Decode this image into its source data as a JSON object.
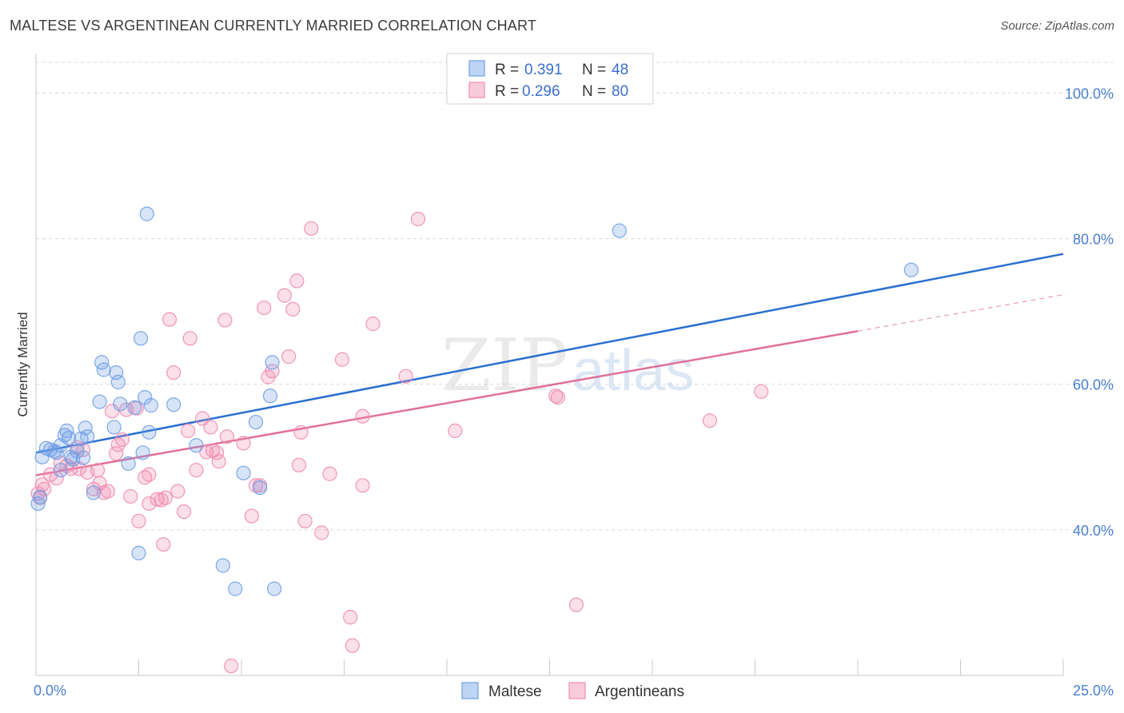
{
  "title": "MALTESE VS ARGENTINEAN CURRENTLY MARRIED CORRELATION CHART",
  "source": "Source: ZipAtlas.com",
  "watermark": {
    "zip": "ZIP",
    "atlas": "atlas"
  },
  "colors": {
    "maltese": "#6f9fe6",
    "maltese_line": "#2a6fd0",
    "argentinean": "#f08cb0",
    "argentinean_line": "#e0709a",
    "grid": "#d8d8d8",
    "axis_text": "#4a7fd0"
  },
  "legend": {
    "rows": [
      {
        "r_label": "R = ",
        "r_value": "0.391",
        "n_label": "N = ",
        "n_value": "48"
      },
      {
        "r_label": "R = ",
        "r_value": "0.296",
        "n_label": "N = ",
        "n_value": "80"
      }
    ]
  },
  "chart_data": {
    "type": "scatter",
    "title": "MALTESE VS ARGENTINEAN CURRENTLY MARRIED CORRELATION CHART",
    "xlabel": "",
    "ylabel": "Currently Married",
    "xlim": [
      0,
      25
    ],
    "ylim": [
      20,
      104
    ],
    "x_tick_labels": [
      "0.0%",
      "25.0%"
    ],
    "y_ticks": [
      40,
      60,
      80,
      100
    ],
    "y_tick_labels": [
      "40.0%",
      "60.0%",
      "80.0%",
      "100.0%"
    ],
    "legend_position": "top-center",
    "series": [
      {
        "name": "Maltese",
        "R": 0.391,
        "N": 48,
        "trend": {
          "x0": 0,
          "y0": 50.6,
          "x1": 25,
          "y1": 77.9
        },
        "points": [
          [
            0.05,
            43.6
          ],
          [
            0.1,
            44.5
          ],
          [
            0.15,
            50.0
          ],
          [
            0.25,
            51.2
          ],
          [
            0.35,
            51.0
          ],
          [
            0.45,
            50.8
          ],
          [
            0.5,
            50.6
          ],
          [
            0.6,
            51.6
          ],
          [
            0.6,
            48.2
          ],
          [
            0.7,
            53.0
          ],
          [
            0.75,
            53.6
          ],
          [
            0.8,
            52.6
          ],
          [
            0.85,
            50.0
          ],
          [
            0.9,
            49.7
          ],
          [
            1.0,
            50.8
          ],
          [
            1.1,
            52.5
          ],
          [
            1.15,
            49.9
          ],
          [
            1.2,
            54.0
          ],
          [
            1.25,
            52.8
          ],
          [
            1.4,
            45.1
          ],
          [
            1.55,
            57.6
          ],
          [
            1.6,
            63.0
          ],
          [
            1.65,
            62.0
          ],
          [
            1.9,
            54.1
          ],
          [
            1.95,
            61.6
          ],
          [
            2.0,
            60.3
          ],
          [
            2.05,
            57.3
          ],
          [
            2.25,
            49.1
          ],
          [
            2.4,
            56.8
          ],
          [
            2.5,
            36.8
          ],
          [
            2.55,
            66.3
          ],
          [
            2.6,
            50.6
          ],
          [
            2.65,
            58.2
          ],
          [
            2.7,
            83.4
          ],
          [
            2.75,
            53.4
          ],
          [
            2.8,
            57.1
          ],
          [
            3.35,
            57.2
          ],
          [
            3.9,
            51.6
          ],
          [
            4.55,
            35.1
          ],
          [
            4.85,
            31.9
          ],
          [
            5.05,
            47.8
          ],
          [
            5.35,
            54.8
          ],
          [
            5.45,
            45.8
          ],
          [
            5.7,
            58.4
          ],
          [
            5.75,
            63.0
          ],
          [
            5.8,
            31.9
          ],
          [
            14.2,
            81.1
          ],
          [
            21.3,
            75.7
          ]
        ]
      },
      {
        "name": "Argentineans",
        "R": 0.296,
        "N": 80,
        "trend": {
          "x0": 0,
          "y0": 47.5,
          "x1": 20.0,
          "y1": 67.3
        },
        "trend_dashed": {
          "x0": 20.0,
          "y0": 67.3,
          "x1": 25,
          "y1": 72.3
        },
        "points": [
          [
            0.05,
            45.0
          ],
          [
            0.1,
            44.4
          ],
          [
            0.15,
            46.2
          ],
          [
            0.2,
            45.6
          ],
          [
            0.35,
            47.6
          ],
          [
            0.5,
            47.1
          ],
          [
            0.6,
            49.2
          ],
          [
            0.75,
            48.8
          ],
          [
            0.85,
            48.4
          ],
          [
            1.0,
            51.3
          ],
          [
            1.05,
            48.4
          ],
          [
            1.15,
            51.0
          ],
          [
            1.25,
            47.9
          ],
          [
            1.4,
            45.6
          ],
          [
            1.5,
            48.2
          ],
          [
            1.55,
            46.4
          ],
          [
            1.65,
            45.1
          ],
          [
            1.75,
            45.3
          ],
          [
            1.85,
            56.3
          ],
          [
            1.95,
            50.5
          ],
          [
            2.0,
            51.7
          ],
          [
            2.1,
            52.4
          ],
          [
            2.2,
            56.5
          ],
          [
            2.3,
            44.6
          ],
          [
            2.45,
            56.7
          ],
          [
            2.5,
            41.2
          ],
          [
            2.65,
            47.2
          ],
          [
            2.75,
            47.6
          ],
          [
            2.75,
            43.6
          ],
          [
            2.95,
            44.2
          ],
          [
            3.05,
            44.1
          ],
          [
            3.15,
            44.4
          ],
          [
            3.1,
            38.0
          ],
          [
            3.25,
            68.9
          ],
          [
            3.35,
            61.6
          ],
          [
            3.45,
            45.3
          ],
          [
            3.6,
            42.5
          ],
          [
            3.7,
            53.6
          ],
          [
            3.75,
            66.3
          ],
          [
            3.9,
            48.2
          ],
          [
            4.05,
            55.3
          ],
          [
            4.15,
            50.7
          ],
          [
            4.25,
            54.1
          ],
          [
            4.3,
            50.9
          ],
          [
            4.4,
            50.6
          ],
          [
            4.45,
            49.4
          ],
          [
            4.6,
            68.8
          ],
          [
            4.65,
            52.8
          ],
          [
            4.75,
            21.3
          ],
          [
            5.05,
            51.9
          ],
          [
            5.25,
            41.9
          ],
          [
            5.35,
            46.1
          ],
          [
            5.45,
            46.1
          ],
          [
            5.55,
            70.5
          ],
          [
            5.65,
            61.0
          ],
          [
            5.75,
            61.8
          ],
          [
            6.05,
            72.2
          ],
          [
            6.15,
            63.8
          ],
          [
            6.25,
            70.3
          ],
          [
            6.35,
            74.2
          ],
          [
            6.4,
            48.9
          ],
          [
            6.45,
            53.4
          ],
          [
            6.55,
            41.2
          ],
          [
            6.7,
            81.4
          ],
          [
            6.95,
            39.6
          ],
          [
            7.15,
            47.7
          ],
          [
            7.45,
            63.4
          ],
          [
            7.65,
            28.0
          ],
          [
            7.7,
            24.1
          ],
          [
            7.95,
            55.6
          ],
          [
            7.95,
            46.1
          ],
          [
            8.2,
            68.3
          ],
          [
            9.0,
            61.1
          ],
          [
            9.3,
            82.7
          ],
          [
            10.2,
            53.6
          ],
          [
            12.65,
            58.4
          ],
          [
            12.7,
            58.2
          ],
          [
            13.15,
            29.7
          ],
          [
            16.4,
            55.0
          ],
          [
            17.65,
            59.0
          ]
        ]
      }
    ]
  },
  "bottom_legend": {
    "items": [
      {
        "label": "Maltese"
      },
      {
        "label": "Argentineans"
      }
    ]
  }
}
